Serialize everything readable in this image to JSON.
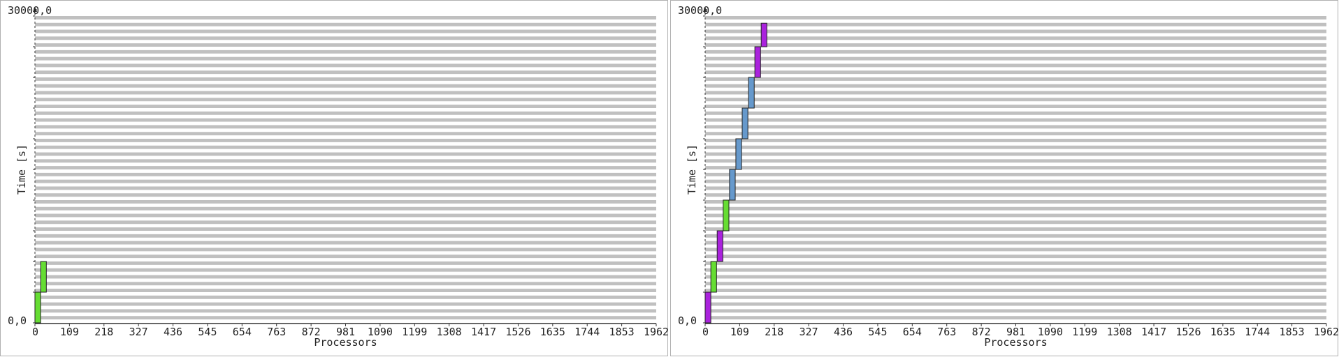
{
  "chart_data": [
    {
      "type": "gantt",
      "ylabel": "Time [s]",
      "xlabel": "Processors",
      "y_max_label": "30000,0",
      "y_min_label": "0,0",
      "ylim": [
        0,
        30000
      ],
      "xlim": [
        0,
        1962
      ],
      "xticks": [
        "0",
        "109",
        "218",
        "327",
        "436",
        "545",
        "654",
        "763",
        "872",
        "981",
        "1090",
        "1199",
        "1308",
        "1417",
        "1526",
        "1635",
        "1744",
        "1853",
        "1962"
      ],
      "stripe_count": 90,
      "colors": {
        "green": "#66dd33",
        "purple": "#aa22dd",
        "blue": "#6699cc",
        "stripe": "#c0c0c0"
      },
      "tasks": [
        {
          "x0": 0,
          "x1": 18,
          "y0": 0,
          "y1": 3000,
          "color": "#66dd33"
        },
        {
          "x0": 18,
          "x1": 36,
          "y0": 3000,
          "y1": 6000,
          "color": "#66dd33"
        }
      ]
    },
    {
      "type": "gantt",
      "ylabel": "Time [s]",
      "xlabel": "Processors",
      "y_max_label": "30000,0",
      "y_min_label": "0,0",
      "ylim": [
        0,
        30000
      ],
      "xlim": [
        0,
        1962
      ],
      "xticks": [
        "0",
        "109",
        "218",
        "327",
        "436",
        "545",
        "654",
        "763",
        "872",
        "981",
        "1090",
        "1199",
        "1308",
        "1417",
        "1526",
        "1635",
        "1744",
        "1853",
        "1962"
      ],
      "stripe_count": 90,
      "colors": {
        "green": "#66dd33",
        "purple": "#aa22dd",
        "blue": "#6699cc",
        "stripe": "#c0c0c0"
      },
      "tasks": [
        {
          "x0": 0,
          "x1": 18,
          "y0": 0,
          "y1": 3000,
          "color": "#aa22dd"
        },
        {
          "x0": 18,
          "x1": 36,
          "y0": 3000,
          "y1": 6000,
          "color": "#66dd33"
        },
        {
          "x0": 38,
          "x1": 56,
          "y0": 6000,
          "y1": 9000,
          "color": "#aa22dd"
        },
        {
          "x0": 57,
          "x1": 75,
          "y0": 9000,
          "y1": 12000,
          "color": "#66dd33"
        },
        {
          "x0": 77,
          "x1": 95,
          "y0": 12000,
          "y1": 15000,
          "color": "#6699cc"
        },
        {
          "x0": 97,
          "x1": 115,
          "y0": 15000,
          "y1": 18000,
          "color": "#6699cc"
        },
        {
          "x0": 117,
          "x1": 135,
          "y0": 18000,
          "y1": 21000,
          "color": "#6699cc"
        },
        {
          "x0": 137,
          "x1": 155,
          "y0": 21000,
          "y1": 24000,
          "color": "#6699cc"
        },
        {
          "x0": 157,
          "x1": 175,
          "y0": 24000,
          "y1": 27000,
          "color": "#aa22dd"
        },
        {
          "x0": 177,
          "x1": 195,
          "y0": 27000,
          "y1": 29300,
          "color": "#aa22dd"
        }
      ]
    }
  ]
}
